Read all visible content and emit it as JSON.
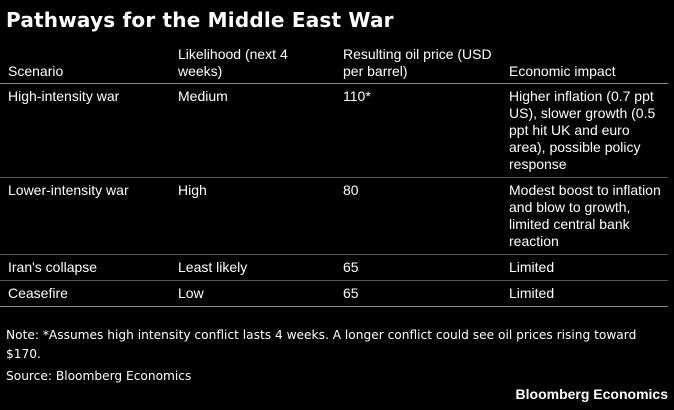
{
  "title": "Pathways for the Middle East War",
  "table": {
    "headers": [
      "Scenario",
      "Likelihood (next 4 weeks)",
      "Resulting oil price (USD per barrel)",
      "Economic impact"
    ],
    "rows": [
      {
        "scenario": "High-intensity war",
        "likelihood": "Medium",
        "oil_price": "110*",
        "impact": "Higher inflation (0.7 ppt US), slower growth (0.5 ppt hit UK and euro area), possible policy response"
      },
      {
        "scenario": "Lower-intensity war",
        "likelihood": "High",
        "oil_price": "80",
        "impact": "Modest boost to inflation and blow to growth, limited central bank reaction"
      },
      {
        "scenario": "Iran's collapse",
        "likelihood": "Least likely",
        "oil_price": "65",
        "impact": "Limited"
      },
      {
        "scenario": "Ceasefire",
        "likelihood": "Low",
        "oil_price": "65",
        "impact": "Limited"
      }
    ]
  },
  "note": "Note: *Assumes high intensity conflict lasts 4 weeks. A longer conflict could see oil prices rising toward $170.",
  "source": "Source: Bloomberg Economics",
  "brand": "Bloomberg Economics"
}
